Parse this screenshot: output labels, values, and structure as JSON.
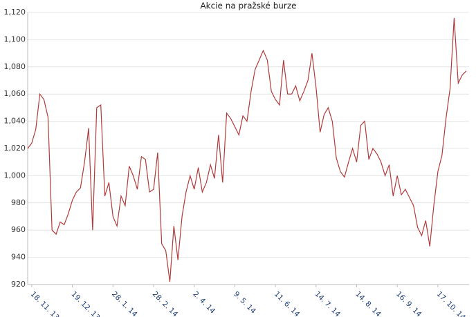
{
  "chart_data": {
    "type": "line",
    "title": "Akcie na pražské burze",
    "categories": [
      null,
      "18. 11. 13",
      null,
      null,
      null,
      null,
      null,
      null,
      null,
      null,
      null,
      "19. 12. 13",
      null,
      null,
      null,
      null,
      null,
      null,
      null,
      null,
      null,
      "28. 1. 14",
      null,
      null,
      null,
      null,
      null,
      null,
      null,
      null,
      null,
      "28. 2. 14",
      null,
      null,
      null,
      null,
      null,
      null,
      null,
      null,
      null,
      "2. 4. 14",
      null,
      null,
      null,
      null,
      null,
      null,
      null,
      null,
      null,
      "9. 5. 14",
      null,
      null,
      null,
      null,
      null,
      null,
      null,
      null,
      null,
      "11. 6. 14",
      null,
      null,
      null,
      null,
      null,
      null,
      null,
      null,
      null,
      "14. 7. 14",
      null,
      null,
      null,
      null,
      null,
      null,
      null,
      null,
      null,
      "14. 8. 14",
      null,
      null,
      null,
      null,
      null,
      null,
      null,
      null,
      null,
      "16. 9. 14",
      null,
      null,
      null,
      null,
      null,
      null,
      null,
      null,
      null,
      "17. 10. 14",
      null,
      null,
      null,
      null,
      null,
      null,
      null
    ],
    "values": [
      1020,
      1024,
      1034,
      1060,
      1056,
      1043,
      960,
      957,
      966,
      964,
      972,
      982,
      988,
      991,
      1010,
      1035,
      960,
      1050,
      1052,
      985,
      995,
      970,
      963,
      985,
      978,
      1007,
      1000,
      990,
      1014,
      1012,
      988,
      990,
      1017,
      950,
      945,
      922,
      963,
      938,
      970,
      988,
      1000,
      990,
      1006,
      988,
      995,
      1008,
      998,
      1030,
      995,
      1046,
      1042,
      1036,
      1030,
      1044,
      1040,
      1062,
      1078,
      1085,
      1092,
      1085,
      1062,
      1056,
      1052,
      1085,
      1060,
      1060,
      1066,
      1055,
      1062,
      1070,
      1090,
      1065,
      1032,
      1045,
      1050,
      1040,
      1013,
      1003,
      999,
      1010,
      1020,
      1010,
      1037,
      1040,
      1012,
      1020,
      1016,
      1010,
      1000,
      1008,
      985,
      1000,
      986,
      990,
      984,
      978,
      962,
      956,
      967,
      948,
      978,
      1003,
      1015,
      1042,
      1064,
      1116,
      1068,
      1074,
      1077
    ],
    "color": "#b03a3a",
    "ylim": [
      920,
      1120
    ],
    "yticks": [
      920,
      940,
      960,
      980,
      {
        "value": 1000,
        "label": "1,000"
      },
      {
        "value": 1020,
        "label": "1,020"
      },
      {
        "value": 1040,
        "label": "1,040"
      },
      {
        "value": 1060,
        "label": "1,060"
      },
      {
        "value": 1080,
        "label": "1,080"
      },
      {
        "value": 1100,
        "label": "1,100"
      },
      {
        "value": 1120,
        "label": "1,120"
      }
    ],
    "grid": true
  }
}
